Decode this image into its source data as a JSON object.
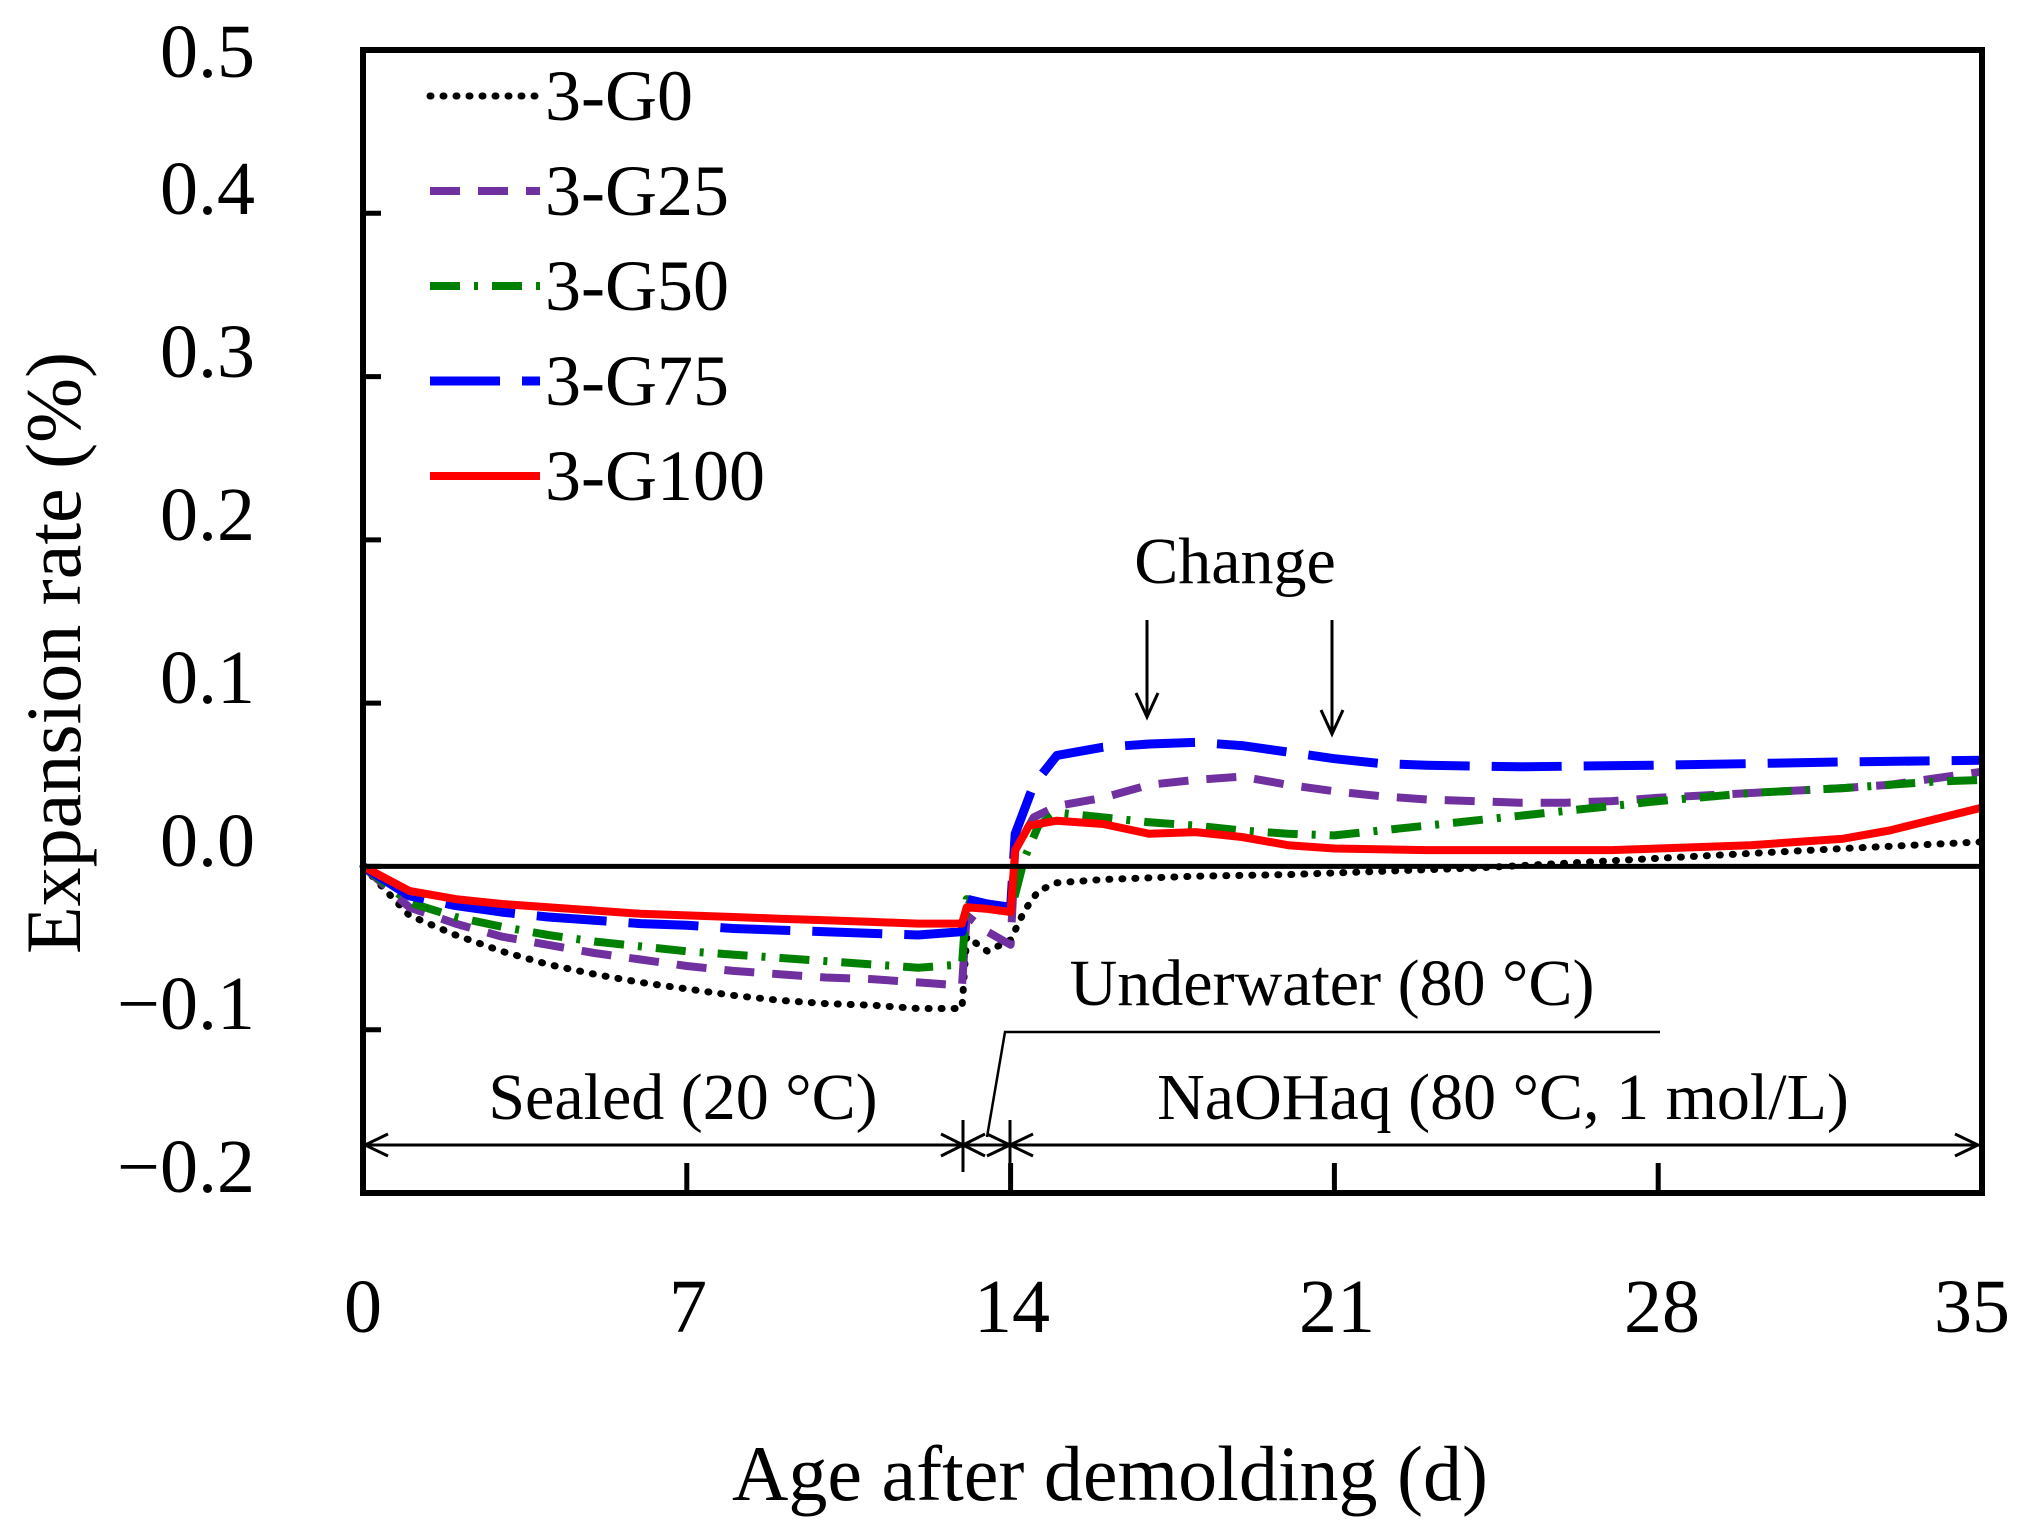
{
  "chart_data": {
    "type": "line",
    "title": "",
    "xlabel": "Age after demolding (d)",
    "ylabel": "Expansion rate (%)",
    "xlim": [
      0,
      35
    ],
    "ylim": [
      -0.2,
      0.5
    ],
    "xticks": [
      0,
      7,
      14,
      21,
      28,
      35
    ],
    "xtick_labels": [
      "0",
      "7",
      "14",
      "21",
      "28",
      "35"
    ],
    "yticks": [
      -0.2,
      -0.1,
      0.0,
      0.1,
      0.2,
      0.3,
      0.4,
      0.5
    ],
    "ytick_labels": [
      "−0.2",
      "−0.1",
      "0.0",
      "0.1",
      "0.2",
      "0.3",
      "0.4",
      "0.5"
    ],
    "grid": false,
    "legend_position": "top-left",
    "series": [
      {
        "name": "3-G0",
        "color": "#000000",
        "style": "dotted",
        "points": [
          [
            0,
            0
          ],
          [
            1,
            -0.03
          ],
          [
            2,
            -0.042
          ],
          [
            3,
            -0.052
          ],
          [
            4,
            -0.06
          ],
          [
            5,
            -0.066
          ],
          [
            6,
            -0.071
          ],
          [
            7,
            -0.075
          ],
          [
            8,
            -0.079
          ],
          [
            9,
            -0.082
          ],
          [
            10,
            -0.084
          ],
          [
            11,
            -0.085
          ],
          [
            12,
            -0.087
          ],
          [
            12.95,
            -0.087
          ],
          [
            13.05,
            -0.043
          ],
          [
            13.5,
            -0.052
          ],
          [
            14,
            -0.045
          ],
          [
            14.3,
            -0.027
          ],
          [
            14.6,
            -0.015
          ],
          [
            15,
            -0.01
          ],
          [
            16,
            -0.008
          ],
          [
            18,
            -0.006
          ],
          [
            20,
            -0.005
          ],
          [
            22,
            -0.003
          ],
          [
            24,
            -0.001
          ],
          [
            26,
            0.002
          ],
          [
            28,
            0.005
          ],
          [
            30,
            0.008
          ],
          [
            32,
            0.011
          ],
          [
            35,
            0.015
          ]
        ]
      },
      {
        "name": "3-G25",
        "color": "#7030a0",
        "style": "dashed",
        "points": [
          [
            0,
            0
          ],
          [
            1,
            -0.025
          ],
          [
            2,
            -0.035
          ],
          [
            3,
            -0.043
          ],
          [
            4,
            -0.048
          ],
          [
            5,
            -0.053
          ],
          [
            6,
            -0.057
          ],
          [
            7,
            -0.061
          ],
          [
            8,
            -0.064
          ],
          [
            9,
            -0.066
          ],
          [
            10,
            -0.068
          ],
          [
            11,
            -0.069
          ],
          [
            12,
            -0.071
          ],
          [
            12.95,
            -0.073
          ],
          [
            13.05,
            -0.03
          ],
          [
            13.5,
            -0.04
          ],
          [
            14,
            -0.048
          ],
          [
            14.1,
            0.01
          ],
          [
            14.5,
            0.03
          ],
          [
            15,
            0.037
          ],
          [
            16,
            0.042
          ],
          [
            17,
            0.05
          ],
          [
            18,
            0.053
          ],
          [
            19,
            0.055
          ],
          [
            20,
            0.05
          ],
          [
            21,
            0.046
          ],
          [
            22,
            0.043
          ],
          [
            23,
            0.041
          ],
          [
            24,
            0.04
          ],
          [
            25,
            0.039
          ],
          [
            26,
            0.039
          ],
          [
            27,
            0.04
          ],
          [
            28,
            0.042
          ],
          [
            30,
            0.045
          ],
          [
            32,
            0.048
          ],
          [
            33,
            0.05
          ],
          [
            35,
            0.058
          ]
        ]
      },
      {
        "name": "3-G50",
        "color": "#008000",
        "style": "dashdot",
        "points": [
          [
            0,
            0
          ],
          [
            1,
            -0.022
          ],
          [
            2,
            -0.031
          ],
          [
            3,
            -0.037
          ],
          [
            4,
            -0.042
          ],
          [
            5,
            -0.046
          ],
          [
            6,
            -0.049
          ],
          [
            7,
            -0.052
          ],
          [
            8,
            -0.054
          ],
          [
            9,
            -0.056
          ],
          [
            10,
            -0.058
          ],
          [
            11,
            -0.06
          ],
          [
            12,
            -0.062
          ],
          [
            12.95,
            -0.06
          ],
          [
            13.05,
            -0.02
          ],
          [
            13.5,
            -0.025
          ],
          [
            14,
            -0.028
          ],
          [
            14.3,
            0.005
          ],
          [
            14.6,
            0.025
          ],
          [
            15,
            0.033
          ],
          [
            16,
            0.03
          ],
          [
            17,
            0.027
          ],
          [
            18,
            0.025
          ],
          [
            19,
            0.022
          ],
          [
            20,
            0.02
          ],
          [
            21,
            0.019
          ],
          [
            22,
            0.022
          ],
          [
            23,
            0.025
          ],
          [
            24,
            0.028
          ],
          [
            25,
            0.031
          ],
          [
            26,
            0.034
          ],
          [
            27,
            0.037
          ],
          [
            28,
            0.04
          ],
          [
            30,
            0.045
          ],
          [
            32,
            0.048
          ],
          [
            34,
            0.052
          ],
          [
            35,
            0.053
          ]
        ]
      },
      {
        "name": "3-G75",
        "color": "#0000ff",
        "style": "longdash",
        "points": [
          [
            0,
            0
          ],
          [
            1,
            -0.018
          ],
          [
            2,
            -0.024
          ],
          [
            3,
            -0.028
          ],
          [
            4,
            -0.031
          ],
          [
            5,
            -0.033
          ],
          [
            6,
            -0.035
          ],
          [
            7,
            -0.036
          ],
          [
            8,
            -0.038
          ],
          [
            9,
            -0.039
          ],
          [
            10,
            -0.04
          ],
          [
            11,
            -0.041
          ],
          [
            12,
            -0.042
          ],
          [
            12.95,
            -0.04
          ],
          [
            13.05,
            -0.02
          ],
          [
            13.5,
            -0.023
          ],
          [
            14,
            -0.025
          ],
          [
            14.1,
            0.02
          ],
          [
            14.5,
            0.05
          ],
          [
            15,
            0.068
          ],
          [
            16,
            0.073
          ],
          [
            17,
            0.075
          ],
          [
            18,
            0.076
          ],
          [
            19,
            0.074
          ],
          [
            20,
            0.07
          ],
          [
            21,
            0.066
          ],
          [
            22,
            0.063
          ],
          [
            23,
            0.062
          ],
          [
            25,
            0.061
          ],
          [
            28,
            0.062
          ],
          [
            30,
            0.063
          ],
          [
            32,
            0.064
          ],
          [
            35,
            0.065
          ]
        ]
      },
      {
        "name": "3-G100",
        "color": "#ff0000",
        "style": "solid",
        "points": [
          [
            0,
            0
          ],
          [
            1,
            -0.015
          ],
          [
            2,
            -0.02
          ],
          [
            3,
            -0.023
          ],
          [
            4,
            -0.025
          ],
          [
            5,
            -0.027
          ],
          [
            6,
            -0.029
          ],
          [
            7,
            -0.03
          ],
          [
            8,
            -0.031
          ],
          [
            9,
            -0.032
          ],
          [
            10,
            -0.033
          ],
          [
            11,
            -0.034
          ],
          [
            12,
            -0.035
          ],
          [
            12.95,
            -0.035
          ],
          [
            13.05,
            -0.025
          ],
          [
            13.5,
            -0.026
          ],
          [
            14,
            -0.028
          ],
          [
            14.1,
            0.01
          ],
          [
            14.4,
            0.025
          ],
          [
            15,
            0.028
          ],
          [
            16,
            0.026
          ],
          [
            17,
            0.02
          ],
          [
            18,
            0.021
          ],
          [
            19,
            0.018
          ],
          [
            20,
            0.013
          ],
          [
            21,
            0.011
          ],
          [
            23,
            0.01
          ],
          [
            25,
            0.01
          ],
          [
            27,
            0.01
          ],
          [
            28,
            0.011
          ],
          [
            30,
            0.013
          ],
          [
            32,
            0.017
          ],
          [
            33,
            0.022
          ],
          [
            35,
            0.036
          ]
        ]
      }
    ],
    "annotations": {
      "change_label": "Change",
      "change_arrows_x": [
        17,
        21
      ],
      "sealed_label": "Sealed (20 °C)",
      "sealed_range": [
        0,
        13
      ],
      "underwater_label": "Underwater (80 °C)",
      "underwater_range": [
        13,
        14
      ],
      "naoh_label": "NaOHaq (80 °C, 1 mol/L)",
      "naoh_range": [
        14,
        35
      ]
    }
  }
}
